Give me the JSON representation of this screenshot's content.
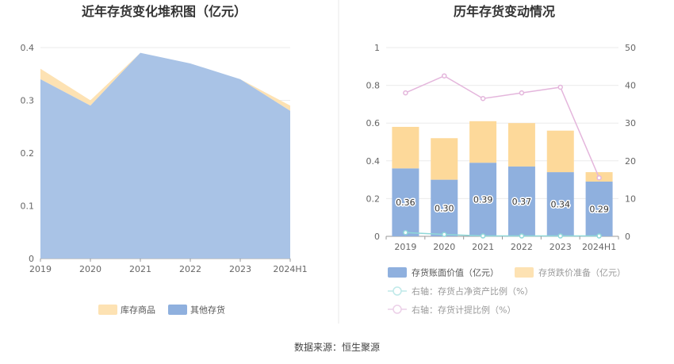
{
  "source_label": "数据来源：恒生聚源",
  "chart_data": [
    {
      "type": "area",
      "stacked": true,
      "title": "近年存货变化堆积图（亿元）",
      "categories": [
        "2019",
        "2020",
        "2021",
        "2022",
        "2023",
        "2024H1"
      ],
      "ylim": [
        0,
        0.4
      ],
      "yticks": [
        "0",
        "0.1",
        "0.2",
        "0.3",
        "0.4"
      ],
      "grid": true,
      "legend_position": "bottom",
      "series": [
        {
          "name": "其他存货",
          "values": [
            0.34,
            0.29,
            0.39,
            0.37,
            0.34,
            0.28
          ],
          "color": "#a9c3e6"
        },
        {
          "name": "库存商品",
          "values": [
            0.02,
            0.01,
            0.0,
            0.0,
            0.0,
            0.01
          ],
          "color": "#fde2b3"
        }
      ]
    },
    {
      "type": "bar",
      "stacked": true,
      "title": "历年存货变动情况",
      "categories": [
        "2019",
        "2020",
        "2021",
        "2022",
        "2023",
        "2024H1"
      ],
      "ylim": [
        0,
        1
      ],
      "yticks": [
        "0",
        "0.2",
        "0.4",
        "0.6",
        "0.8",
        "1"
      ],
      "y2lim": [
        0,
        50
      ],
      "y2ticks": [
        "0",
        "10",
        "20",
        "30",
        "40",
        "50"
      ],
      "grid": true,
      "legend_position": "bottom",
      "series": [
        {
          "name": "存货账面价值（亿元）",
          "values": [
            0.36,
            0.3,
            0.39,
            0.37,
            0.34,
            0.29
          ],
          "labels": [
            "0.36",
            "0.30",
            "0.39",
            "0.37",
            "0.34",
            "0.29"
          ],
          "color": "#8fb0de"
        },
        {
          "name": "存货跌价准备（亿元）",
          "values": [
            0.22,
            0.22,
            0.22,
            0.23,
            0.22,
            0.05
          ],
          "color": "#fdd99a"
        }
      ],
      "line_series": [
        {
          "name": "右轴：存货占净资产比例（%）",
          "axis": "right",
          "values": [
            1.0,
            0.5,
            0.1,
            0.1,
            0.1,
            0.1
          ],
          "color": "#8fd8d8"
        },
        {
          "name": "右轴：存货计提比例（%）",
          "axis": "right",
          "values": [
            38.0,
            42.5,
            36.5,
            38.0,
            39.5,
            15.5
          ],
          "color": "#e4b6dc"
        }
      ]
    }
  ]
}
